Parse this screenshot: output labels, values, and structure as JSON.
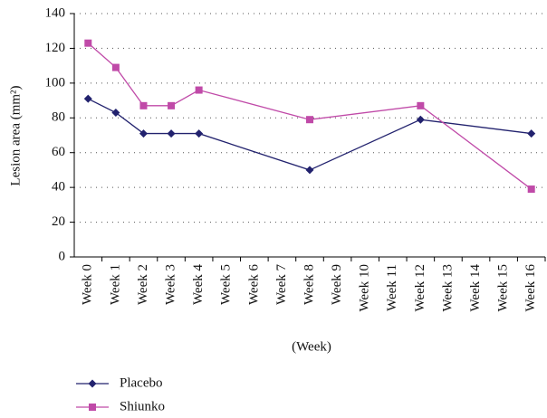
{
  "chart_data": {
    "type": "line",
    "y_label": "Lesion area (mm²)",
    "x_label": "(Week)",
    "x": [
      0,
      1,
      2,
      3,
      4,
      8,
      12,
      16
    ],
    "xlim": [
      -0.5,
      16.5
    ],
    "xticks": [
      {
        "value": 0,
        "label": "Week 0"
      },
      {
        "value": 1,
        "label": "Week 1"
      },
      {
        "value": 2,
        "label": "Week 2"
      },
      {
        "value": 3,
        "label": "Week 3"
      },
      {
        "value": 4,
        "label": "Week 4"
      },
      {
        "value": 5,
        "label": "Week 5"
      },
      {
        "value": 6,
        "label": "Week 6"
      },
      {
        "value": 7,
        "label": "Week 7"
      },
      {
        "value": 8,
        "label": "Week 8"
      },
      {
        "value": 9,
        "label": "Week 9"
      },
      {
        "value": 10,
        "label": "Week 10"
      },
      {
        "value": 11,
        "label": "Week 11"
      },
      {
        "value": 12,
        "label": "Week 12"
      },
      {
        "value": 13,
        "label": "Week 13"
      },
      {
        "value": 14,
        "label": "Week 14"
      },
      {
        "value": 15,
        "label": "Week 15"
      },
      {
        "value": 16,
        "label": "Week 16"
      }
    ],
    "ylim": [
      0,
      140
    ],
    "yticks": [
      0,
      20,
      40,
      60,
      80,
      100,
      120,
      140
    ],
    "grid": true,
    "legend": "bottom-left",
    "series": [
      {
        "name": "Placebo",
        "color": "#22226e",
        "marker": "diamond",
        "values": [
          91,
          83,
          71,
          71,
          71,
          50,
          79,
          71
        ]
      },
      {
        "name": "Shiunko",
        "color": "#c04aa8",
        "marker": "square",
        "values": [
          123,
          109,
          87,
          87,
          96,
          79,
          87,
          39
        ]
      }
    ]
  }
}
